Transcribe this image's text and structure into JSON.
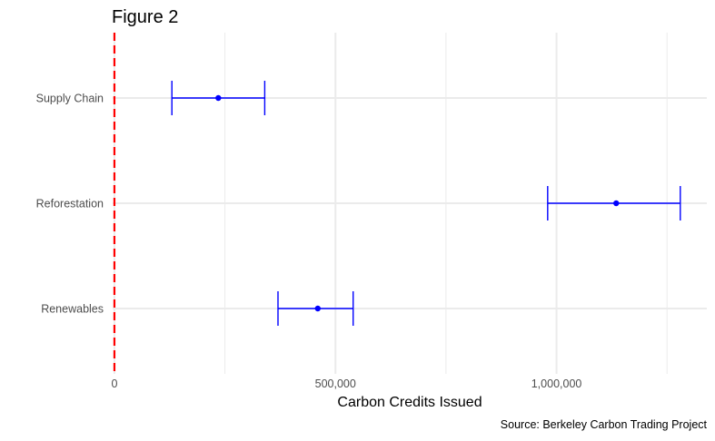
{
  "chart_data": {
    "type": "errorbar",
    "title": "Figure 2",
    "xlabel": "Carbon Credits Issued",
    "ylabel": "",
    "caption": "Source: Berkeley Carbon Trading Project",
    "xlim": [
      -4000,
      1340000
    ],
    "x_ticks": [
      0,
      500000,
      1000000
    ],
    "x_tick_labels": [
      "0",
      "500,000",
      "1,000,000"
    ],
    "categories": [
      "Supply Chain",
      "Reforestation",
      "Renewables"
    ],
    "estimates": [
      235000,
      1135000,
      460000
    ],
    "lower": [
      130000,
      980000,
      370000
    ],
    "upper": [
      340000,
      1280000,
      540000
    ],
    "reference_line": {
      "x": 0,
      "color": "#ff0000",
      "style": "dashed"
    },
    "point_color": "#0000ff",
    "grid": true,
    "legend": "none"
  }
}
